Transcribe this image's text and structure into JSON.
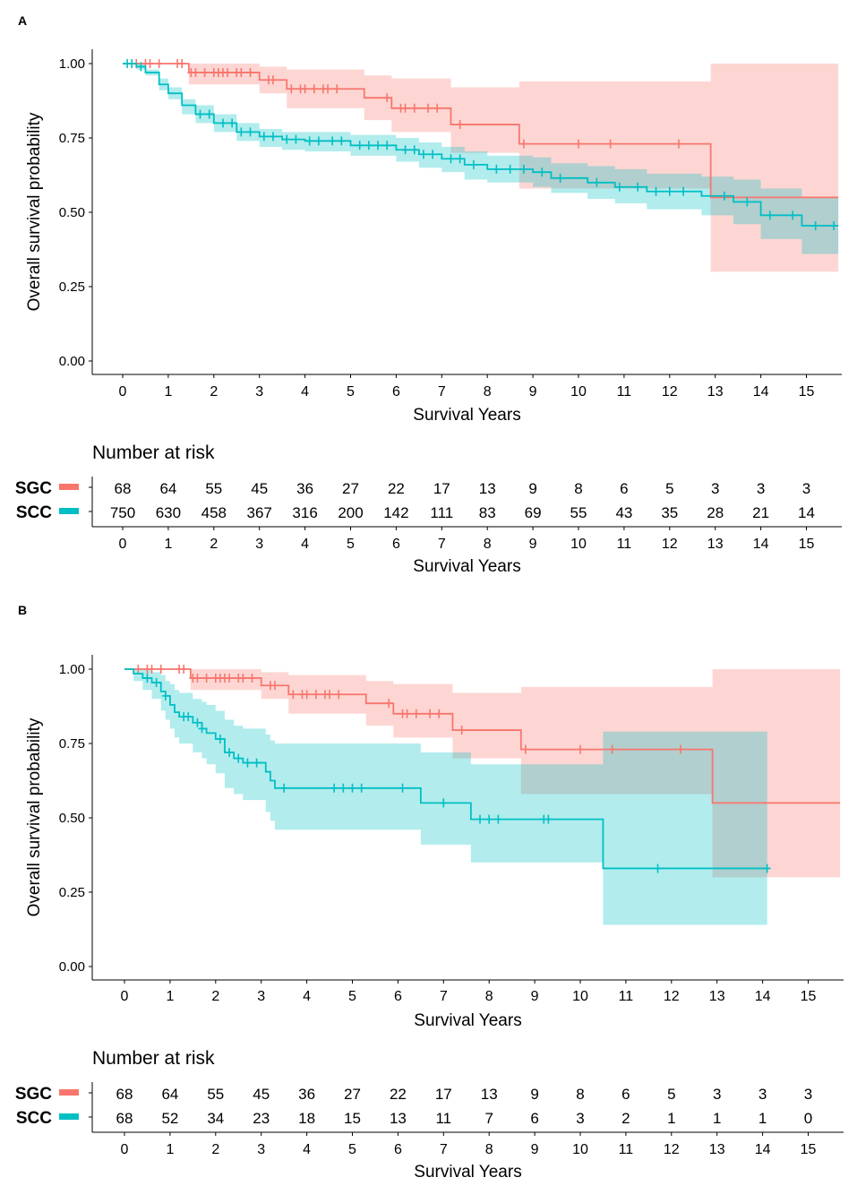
{
  "colors": {
    "sgc": "#F8766D",
    "scc": "#00BFC4",
    "sgc_band": "#F8766D",
    "scc_band": "#00BFC4"
  },
  "chart_data": [
    {
      "panel_label": "A",
      "type": "line",
      "subtype": "kaplan-meier",
      "ylabel": "Overall survival probability",
      "xlabel": "Survival Years",
      "ylim": [
        0,
        1
      ],
      "xlim": [
        0,
        15.7
      ],
      "yticks": [
        "0.00",
        "0.25",
        "0.50",
        "0.75",
        "1.00"
      ],
      "yticks_values": [
        0,
        0.25,
        0.5,
        0.75,
        1.0
      ],
      "xticks": [
        "0",
        "1",
        "2",
        "3",
        "4",
        "5",
        "6",
        "7",
        "8",
        "9",
        "10",
        "11",
        "12",
        "13",
        "14",
        "15"
      ],
      "series": [
        {
          "name": "SGC",
          "steps": [
            [
              0,
              1.0
            ],
            [
              1.45,
              0.97
            ],
            [
              3.0,
              0.945
            ],
            [
              3.6,
              0.915
            ],
            [
              5.3,
              0.885
            ],
            [
              5.9,
              0.85
            ],
            [
              7.2,
              0.795
            ],
            [
              8.7,
              0.73
            ],
            [
              12.9,
              0.55
            ],
            [
              15.7,
              0.55
            ]
          ],
          "ci": [
            [
              0,
              1.0,
              1.0
            ],
            [
              1.45,
              0.93,
              1.0
            ],
            [
              3.0,
              0.9,
              0.99
            ],
            [
              3.6,
              0.85,
              0.98
            ],
            [
              5.3,
              0.81,
              0.96
            ],
            [
              5.9,
              0.77,
              0.95
            ],
            [
              7.2,
              0.7,
              0.92
            ],
            [
              8.7,
              0.58,
              0.94
            ],
            [
              12.9,
              0.3,
              1.0
            ],
            [
              15.7,
              0.3,
              1.0
            ]
          ],
          "censors": [
            0.3,
            0.5,
            0.6,
            0.8,
            1.2,
            1.3,
            1.5,
            1.6,
            1.8,
            2.0,
            2.1,
            2.2,
            2.3,
            2.5,
            2.6,
            2.8,
            3.2,
            3.3,
            3.7,
            3.9,
            4.0,
            4.2,
            4.4,
            4.5,
            4.7,
            5.8,
            6.1,
            6.2,
            6.4,
            6.7,
            6.9,
            7.4,
            8.8,
            10.0,
            10.7,
            12.2
          ]
        },
        {
          "name": "SCC",
          "steps": [
            [
              0,
              1.0
            ],
            [
              0.3,
              0.99
            ],
            [
              0.5,
              0.97
            ],
            [
              0.8,
              0.93
            ],
            [
              1.0,
              0.9
            ],
            [
              1.3,
              0.86
            ],
            [
              1.6,
              0.83
            ],
            [
              2.0,
              0.8
            ],
            [
              2.5,
              0.77
            ],
            [
              3.0,
              0.755
            ],
            [
              3.5,
              0.745
            ],
            [
              4.0,
              0.74
            ],
            [
              5.0,
              0.725
            ],
            [
              6.0,
              0.71
            ],
            [
              6.5,
              0.695
            ],
            [
              7.0,
              0.68
            ],
            [
              7.5,
              0.66
            ],
            [
              8.0,
              0.645
            ],
            [
              9.0,
              0.635
            ],
            [
              9.4,
              0.615
            ],
            [
              10.2,
              0.6
            ],
            [
              10.8,
              0.585
            ],
            [
              11.5,
              0.57
            ],
            [
              12.7,
              0.555
            ],
            [
              13.4,
              0.535
            ],
            [
              14.0,
              0.49
            ],
            [
              14.9,
              0.455
            ],
            [
              15.7,
              0.455
            ]
          ],
          "ci": [
            [
              0,
              1.0,
              1.0
            ],
            [
              0.3,
              0.98,
              1.0
            ],
            [
              0.5,
              0.96,
              0.98
            ],
            [
              0.8,
              0.91,
              0.95
            ],
            [
              1.0,
              0.88,
              0.92
            ],
            [
              1.3,
              0.83,
              0.88
            ],
            [
              1.6,
              0.8,
              0.86
            ],
            [
              2.0,
              0.77,
              0.83
            ],
            [
              2.5,
              0.74,
              0.8
            ],
            [
              3.0,
              0.72,
              0.78
            ],
            [
              3.5,
              0.71,
              0.77
            ],
            [
              4.0,
              0.705,
              0.77
            ],
            [
              5.0,
              0.69,
              0.76
            ],
            [
              6.0,
              0.67,
              0.75
            ],
            [
              6.5,
              0.65,
              0.735
            ],
            [
              7.0,
              0.635,
              0.72
            ],
            [
              7.5,
              0.61,
              0.705
            ],
            [
              8.0,
              0.6,
              0.69
            ],
            [
              9.0,
              0.585,
              0.685
            ],
            [
              9.4,
              0.565,
              0.665
            ],
            [
              10.2,
              0.545,
              0.655
            ],
            [
              10.8,
              0.53,
              0.645
            ],
            [
              11.5,
              0.51,
              0.63
            ],
            [
              12.7,
              0.49,
              0.62
            ],
            [
              13.4,
              0.46,
              0.61
            ],
            [
              14.0,
              0.41,
              0.58
            ],
            [
              14.9,
              0.36,
              0.55
            ],
            [
              15.7,
              0.36,
              0.55
            ]
          ],
          "censors": [
            0.1,
            0.2,
            0.4,
            1.7,
            1.9,
            2.2,
            2.4,
            2.6,
            2.8,
            3.1,
            3.3,
            3.6,
            3.8,
            4.1,
            4.3,
            4.6,
            4.8,
            5.2,
            5.4,
            5.6,
            5.8,
            6.2,
            6.4,
            6.6,
            6.8,
            7.2,
            7.4,
            7.7,
            8.2,
            8.5,
            8.8,
            9.2,
            9.6,
            10.4,
            10.9,
            11.3,
            11.7,
            12.0,
            12.3,
            13.2,
            13.7,
            14.2,
            14.7,
            15.2,
            15.6
          ]
        }
      ],
      "risk_table": {
        "title": "Number at risk",
        "xlabel": "Survival Years",
        "rows": [
          {
            "label": "SGC",
            "values": [
              "68",
              "64",
              "55",
              "45",
              "36",
              "27",
              "22",
              "17",
              "13",
              "9",
              "8",
              "6",
              "5",
              "3",
              "3",
              "3"
            ]
          },
          {
            "label": "SCC",
            "values": [
              "750",
              "630",
              "458",
              "367",
              "316",
              "200",
              "142",
              "111",
              "83",
              "69",
              "55",
              "43",
              "35",
              "28",
              "21",
              "14"
            ]
          }
        ]
      }
    },
    {
      "panel_label": "B",
      "type": "line",
      "subtype": "kaplan-meier",
      "ylabel": "Overall survival probability",
      "xlabel": "Survival Years",
      "ylim": [
        0,
        1
      ],
      "xlim": [
        0,
        15.7
      ],
      "yticks": [
        "0.00",
        "0.25",
        "0.50",
        "0.75",
        "1.00"
      ],
      "yticks_values": [
        0,
        0.25,
        0.5,
        0.75,
        1.0
      ],
      "xticks": [
        "0",
        "1",
        "2",
        "3",
        "4",
        "5",
        "6",
        "7",
        "8",
        "9",
        "10",
        "11",
        "12",
        "13",
        "14",
        "15"
      ],
      "series": [
        {
          "name": "SGC",
          "steps": [
            [
              0,
              1.0
            ],
            [
              1.45,
              0.97
            ],
            [
              3.0,
              0.945
            ],
            [
              3.6,
              0.915
            ],
            [
              5.3,
              0.885
            ],
            [
              5.9,
              0.85
            ],
            [
              7.2,
              0.795
            ],
            [
              8.7,
              0.73
            ],
            [
              12.9,
              0.55
            ],
            [
              15.7,
              0.55
            ]
          ],
          "ci": [
            [
              0,
              1.0,
              1.0
            ],
            [
              1.45,
              0.93,
              1.0
            ],
            [
              3.0,
              0.9,
              0.99
            ],
            [
              3.6,
              0.85,
              0.98
            ],
            [
              5.3,
              0.81,
              0.96
            ],
            [
              5.9,
              0.77,
              0.95
            ],
            [
              7.2,
              0.7,
              0.92
            ],
            [
              8.7,
              0.58,
              0.94
            ],
            [
              12.9,
              0.3,
              1.0
            ],
            [
              15.7,
              0.3,
              1.0
            ]
          ],
          "censors": [
            0.3,
            0.5,
            0.6,
            0.8,
            1.2,
            1.3,
            1.5,
            1.6,
            1.8,
            2.0,
            2.1,
            2.2,
            2.3,
            2.5,
            2.6,
            2.8,
            3.2,
            3.3,
            3.7,
            3.9,
            4.0,
            4.2,
            4.4,
            4.5,
            4.7,
            5.8,
            6.1,
            6.2,
            6.4,
            6.7,
            6.9,
            7.4,
            8.8,
            10.0,
            10.7,
            12.2
          ]
        },
        {
          "name": "SCC",
          "steps": [
            [
              0,
              1.0
            ],
            [
              0.2,
              0.985
            ],
            [
              0.4,
              0.97
            ],
            [
              0.6,
              0.955
            ],
            [
              0.8,
              0.925
            ],
            [
              0.9,
              0.91
            ],
            [
              1.0,
              0.88
            ],
            [
              1.1,
              0.855
            ],
            [
              1.2,
              0.84
            ],
            [
              1.5,
              0.82
            ],
            [
              1.7,
              0.8
            ],
            [
              1.8,
              0.785
            ],
            [
              2.0,
              0.765
            ],
            [
              2.2,
              0.72
            ],
            [
              2.4,
              0.7
            ],
            [
              2.6,
              0.685
            ],
            [
              3.1,
              0.655
            ],
            [
              3.2,
              0.625
            ],
            [
              3.3,
              0.6
            ],
            [
              6.5,
              0.55
            ],
            [
              7.6,
              0.495
            ],
            [
              10.5,
              0.33
            ],
            [
              14.1,
              0.33
            ]
          ],
          "ci": [
            [
              0,
              1.0,
              1.0
            ],
            [
              0.2,
              0.96,
              1.0
            ],
            [
              0.4,
              0.93,
              1.0
            ],
            [
              0.6,
              0.9,
              0.99
            ],
            [
              0.8,
              0.86,
              0.98
            ],
            [
              0.9,
              0.83,
              0.96
            ],
            [
              1.0,
              0.8,
              0.95
            ],
            [
              1.1,
              0.77,
              0.93
            ],
            [
              1.2,
              0.75,
              0.92
            ],
            [
              1.5,
              0.72,
              0.9
            ],
            [
              1.7,
              0.7,
              0.89
            ],
            [
              1.8,
              0.68,
              0.88
            ],
            [
              2.0,
              0.65,
              0.86
            ],
            [
              2.2,
              0.6,
              0.83
            ],
            [
              2.4,
              0.58,
              0.81
            ],
            [
              2.6,
              0.56,
              0.8
            ],
            [
              3.1,
              0.52,
              0.78
            ],
            [
              3.2,
              0.49,
              0.76
            ],
            [
              3.3,
              0.46,
              0.75
            ],
            [
              6.5,
              0.41,
              0.72
            ],
            [
              7.6,
              0.35,
              0.68
            ],
            [
              10.5,
              0.14,
              0.79
            ],
            [
              14.1,
              0.14,
              0.79
            ]
          ],
          "censors": [
            0.5,
            0.7,
            0.9,
            1.3,
            1.4,
            1.6,
            1.7,
            2.1,
            2.3,
            2.5,
            2.7,
            2.9,
            3.5,
            4.6,
            4.8,
            5.0,
            5.2,
            6.1,
            7.0,
            7.8,
            8.0,
            8.2,
            9.2,
            9.3,
            11.7,
            14.1
          ]
        }
      ],
      "risk_table": {
        "title": "Number at risk",
        "xlabel": "Survival Years",
        "rows": [
          {
            "label": "SGC",
            "values": [
              "68",
              "64",
              "55",
              "45",
              "36",
              "27",
              "22",
              "17",
              "13",
              "9",
              "8",
              "6",
              "5",
              "3",
              "3",
              "3"
            ]
          },
          {
            "label": "SCC",
            "values": [
              "68",
              "52",
              "34",
              "23",
              "18",
              "15",
              "13",
              "11",
              "7",
              "6",
              "3",
              "2",
              "1",
              "1",
              "1",
              "0"
            ]
          }
        ]
      }
    }
  ]
}
